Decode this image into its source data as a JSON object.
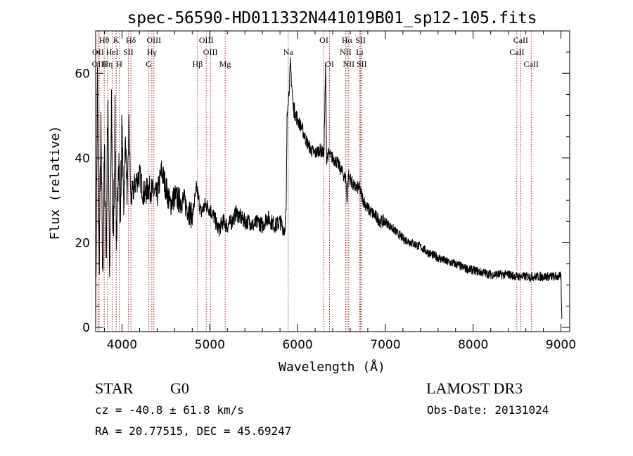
{
  "chart_data": {
    "type": "line",
    "title": "spec-56590-HD011332N441019B01_sp12-105.fits",
    "xlabel": "Wavelength (Å)",
    "ylabel": "Flux (relative)",
    "xlim": [
      3700,
      9100
    ],
    "ylim": [
      -1,
      70
    ],
    "x_ticks": [
      4000,
      5000,
      6000,
      7000,
      8000,
      9000
    ],
    "y_ticks": [
      0,
      20,
      40,
      60
    ],
    "grid": false,
    "series": [
      {
        "name": "flux",
        "x": [
          3700,
          3720,
          3740,
          3760,
          3780,
          3800,
          3820,
          3840,
          3860,
          3880,
          3900,
          3920,
          3940,
          3960,
          3980,
          4000,
          4020,
          4040,
          4060,
          4080,
          4100,
          4150,
          4200,
          4250,
          4300,
          4350,
          4400,
          4450,
          4500,
          4550,
          4600,
          4650,
          4700,
          4750,
          4800,
          4850,
          4900,
          4950,
          5000,
          5050,
          5100,
          5150,
          5200,
          5250,
          5300,
          5350,
          5400,
          5450,
          5500,
          5550,
          5600,
          5650,
          5700,
          5750,
          5800,
          5850,
          5870,
          5880,
          5890,
          5900,
          5920,
          5950,
          6000,
          6050,
          6100,
          6150,
          6200,
          6250,
          6300,
          6320,
          6330,
          6350,
          6400,
          6450,
          6500,
          6550,
          6563,
          6580,
          6600,
          6650,
          6700,
          6750,
          6800,
          6850,
          6900,
          6950,
          7000,
          7100,
          7200,
          7300,
          7400,
          7500,
          7600,
          7700,
          7800,
          7900,
          8000,
          8100,
          8200,
          8300,
          8400,
          8500,
          8600,
          8700,
          8800,
          8900,
          9000,
          9010
        ],
        "values": [
          0.5,
          58,
          15,
          45,
          12,
          40,
          18,
          55,
          10,
          50,
          20,
          48,
          15,
          44,
          26,
          47,
          28,
          45,
          30,
          48,
          30,
          34,
          36,
          31,
          33,
          32,
          31,
          37,
          33,
          29,
          31,
          30,
          30,
          28,
          26,
          33,
          27,
          29,
          28,
          26,
          23,
          25,
          24,
          25,
          27,
          26,
          25,
          25,
          24,
          25,
          24,
          26,
          25,
          24,
          25,
          23,
          27,
          49,
          54,
          55,
          62,
          52,
          49,
          47,
          44,
          42,
          41,
          42,
          41,
          62,
          40,
          41,
          40,
          39,
          37,
          35,
          30,
          36,
          35,
          33,
          33,
          30,
          28,
          27,
          26,
          25,
          25,
          23,
          21,
          20,
          19,
          17.5,
          16.5,
          15.5,
          15,
          14,
          13.5,
          13,
          12.5,
          12.5,
          12.5,
          12,
          12,
          12,
          12,
          12,
          12,
          2
        ]
      }
    ],
    "annotations": [
      {
        "label": "Hθ",
        "row": 1,
        "wavelength": 3798
      },
      {
        "label": "K",
        "row": 1,
        "wavelength": 3934
      },
      {
        "label": "Hδ",
        "row": 1,
        "wavelength": 4102
      },
      {
        "label": "OIII",
        "row": 1,
        "wavelength": 4363
      },
      {
        "label": "OIII",
        "row": 1,
        "wavelength": 4959
      },
      {
        "label": "OI",
        "row": 1,
        "wavelength": 6300
      },
      {
        "label": "Hα",
        "row": 1,
        "wavelength": 6563
      },
      {
        "label": "SII",
        "row": 1,
        "wavelength": 6717
      },
      {
        "label": "CaII",
        "row": 1,
        "wavelength": 8542
      },
      {
        "label": "OII",
        "row": 2,
        "wavelength": 3727
      },
      {
        "label": "HeI",
        "row": 2,
        "wavelength": 3889
      },
      {
        "label": "SII",
        "row": 2,
        "wavelength": 4072
      },
      {
        "label": "Hγ",
        "row": 2,
        "wavelength": 4340
      },
      {
        "label": "OIII",
        "row": 2,
        "wavelength": 5007
      },
      {
        "label": "Na",
        "row": 2,
        "wavelength": 5893
      },
      {
        "label": "NII",
        "row": 2,
        "wavelength": 6548
      },
      {
        "label": "Li",
        "row": 2,
        "wavelength": 6708
      },
      {
        "label": "CaII",
        "row": 2,
        "wavelength": 8498
      },
      {
        "label": "OIII",
        "row": 3,
        "wavelength": 3740
      },
      {
        "label": "Hη",
        "row": 3,
        "wavelength": 3835
      },
      {
        "label": "H",
        "row": 3,
        "wavelength": 3969
      },
      {
        "label": "G",
        "row": 3,
        "wavelength": 4306
      },
      {
        "label": "Hβ",
        "row": 3,
        "wavelength": 4861
      },
      {
        "label": "Mg",
        "row": 3,
        "wavelength": 5175
      },
      {
        "label": "OI",
        "row": 3,
        "wavelength": 6364
      },
      {
        "label": "NII",
        "row": 3,
        "wavelength": 6583
      },
      {
        "label": "SII",
        "row": 3,
        "wavelength": 6731
      },
      {
        "label": "CaII",
        "row": 3,
        "wavelength": 8662
      }
    ],
    "line_color": "#000000",
    "marker_line_color": "#b02020"
  },
  "info": {
    "class_label": "STAR",
    "subclass": "G0",
    "survey": "LAMOST DR3",
    "redshift": "cz = -40.8 ± 61.8 km/s",
    "obs_date": "Obs-Date: 20131024",
    "coords": "RA =  20.77515, DEC =  45.69247"
  }
}
